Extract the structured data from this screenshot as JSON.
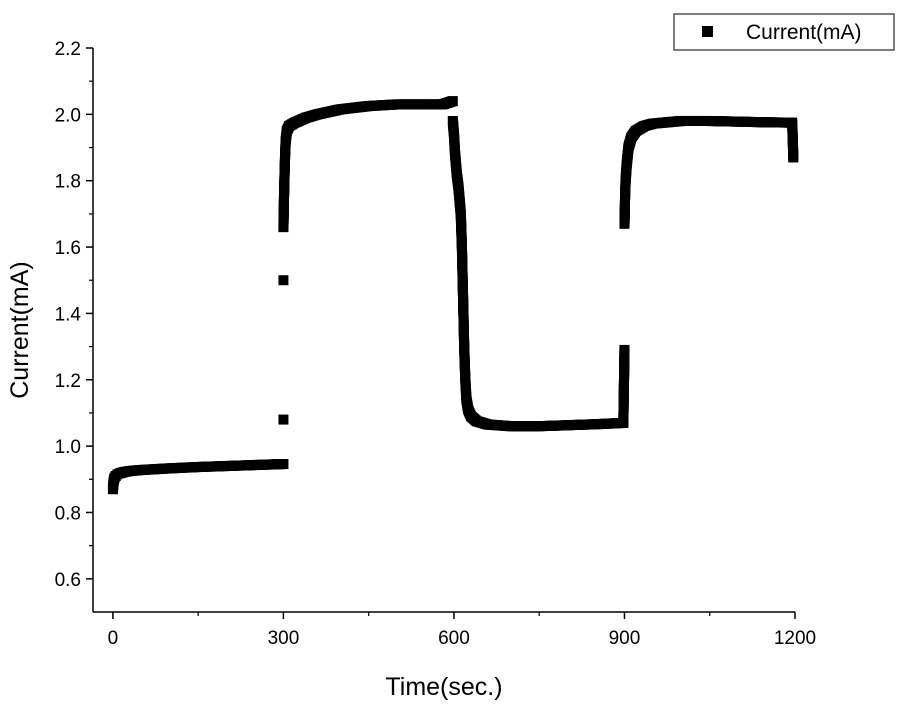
{
  "chart_data": {
    "type": "scatter",
    "xlabel": "Time(sec.)",
    "ylabel": "Current(mA)",
    "xlim": [
      -35,
      1200
    ],
    "ylim": [
      0.5,
      2.2
    ],
    "x_ticks": [
      0,
      300,
      600,
      900,
      1200
    ],
    "y_ticks": [
      0.6,
      0.8,
      1.0,
      1.2,
      1.4,
      1.6,
      1.8,
      2.0,
      2.2
    ],
    "grid": false,
    "legend_position": "top-right",
    "marker_color": "#000000",
    "series": [
      {
        "name": "Current(mA)",
        "marker": "square",
        "segments": [
          {
            "points": [
              [
                0,
                0.87
              ],
              [
                0.5,
                0.88
              ],
              [
                1,
                0.89
              ],
              [
                2,
                0.9
              ],
              [
                3,
                0.905
              ],
              [
                5,
                0.91
              ],
              [
                8,
                0.915
              ],
              [
                12,
                0.918
              ],
              [
                20,
                0.922
              ],
              [
                30,
                0.925
              ],
              [
                50,
                0.928
              ],
              [
                80,
                0.931
              ],
              [
                100,
                0.933
              ],
              [
                150,
                0.937
              ],
              [
                200,
                0.94
              ],
              [
                250,
                0.943
              ],
              [
                300,
                0.946
              ]
            ]
          },
          {
            "points": [
              [
                300,
                1.08
              ],
              [
                300,
                1.5
              ],
              [
                300,
                1.66
              ],
              [
                300.5,
                1.7
              ],
              [
                301,
                1.75
              ],
              [
                302,
                1.82
              ],
              [
                303,
                1.88
              ],
              [
                304,
                1.92
              ],
              [
                306,
                1.95
              ],
              [
                310,
                1.965
              ],
              [
                320,
                1.975
              ],
              [
                340,
                1.99
              ],
              [
                360,
                2.0
              ],
              [
                400,
                2.015
              ],
              [
                450,
                2.025
              ],
              [
                500,
                2.03
              ],
              [
                550,
                2.03
              ],
              [
                580,
                2.03
              ],
              [
                598,
                2.04
              ]
            ]
          },
          {
            "points": [
              [
                598,
                1.98
              ],
              [
                600,
                1.94
              ],
              [
                602,
                1.88
              ],
              [
                605,
                1.82
              ],
              [
                608,
                1.78
              ],
              [
                612,
                1.7
              ],
              [
                614,
                1.6
              ],
              [
                616,
                1.45
              ],
              [
                618,
                1.3
              ],
              [
                620,
                1.2
              ],
              [
                622,
                1.14
              ],
              [
                625,
                1.11
              ],
              [
                630,
                1.09
              ],
              [
                640,
                1.075
              ],
              [
                660,
                1.065
              ],
              [
                700,
                1.06
              ],
              [
                750,
                1.06
              ],
              [
                800,
                1.063
              ],
              [
                850,
                1.066
              ],
              [
                898,
                1.07
              ]
            ]
          },
          {
            "points": [
              [
                898,
                1.07
              ],
              [
                900,
                1.29
              ],
              [
                900,
                1.67
              ],
              [
                900.5,
                1.7
              ],
              [
                901,
                1.75
              ],
              [
                902,
                1.8
              ],
              [
                904,
                1.85
              ],
              [
                907,
                1.9
              ],
              [
                912,
                1.93
              ],
              [
                920,
                1.95
              ],
              [
                935,
                1.965
              ],
              [
                950,
                1.972
              ],
              [
                1000,
                1.98
              ],
              [
                1050,
                1.98
              ],
              [
                1100,
                1.978
              ],
              [
                1150,
                1.976
              ],
              [
                1195,
                1.975
              ],
              [
                1196,
                1.93
              ],
              [
                1197,
                1.87
              ]
            ]
          }
        ]
      }
    ]
  }
}
